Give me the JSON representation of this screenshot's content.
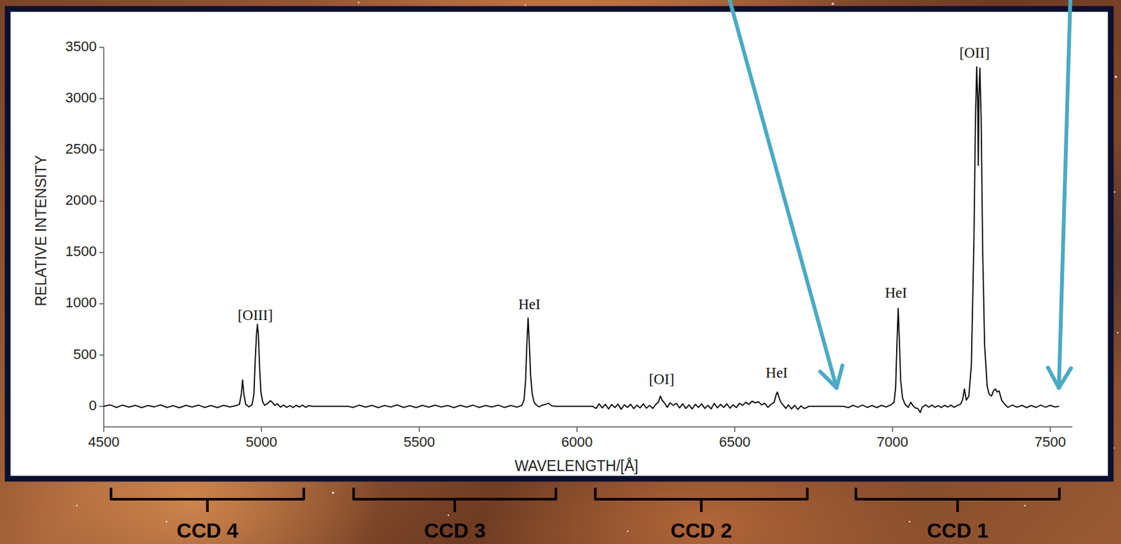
{
  "chart_data": {
    "type": "line",
    "x_label": "WAVELENGTH/[Å]",
    "y_label": "RELATIVE INTENSITY",
    "color": "#000000",
    "xlim": [
      4500,
      7570
    ],
    "ylim": [
      -200,
      3500
    ],
    "xticks": [
      4500,
      5000,
      5500,
      6000,
      6500,
      7000,
      7500
    ],
    "yticks": [
      0,
      500,
      1000,
      1500,
      2000,
      2500,
      3000,
      3500
    ],
    "grid": false,
    "x": [
      4500,
      4520,
      4540,
      4560,
      4580,
      4600,
      4620,
      4640,
      4660,
      4680,
      4700,
      4720,
      4740,
      4760,
      4780,
      4800,
      4820,
      4840,
      4860,
      4880,
      4900,
      4920,
      4930,
      4936,
      4940,
      4944,
      4950,
      4960,
      4970,
      4976,
      4980,
      4984,
      4987,
      4990,
      4994,
      4998,
      5004,
      5010,
      5020,
      5028,
      5034,
      5042,
      5050,
      5060,
      5070,
      5080,
      5090,
      5100,
      5110,
      5120,
      5130,
      5140,
      5150,
      5160,
      5275,
      5290,
      5310,
      5330,
      5350,
      5370,
      5390,
      5410,
      5430,
      5450,
      5470,
      5490,
      5510,
      5530,
      5550,
      5570,
      5590,
      5610,
      5630,
      5650,
      5670,
      5690,
      5710,
      5730,
      5750,
      5770,
      5790,
      5810,
      5825,
      5832,
      5837,
      5841,
      5845,
      5849,
      5853,
      5858,
      5864,
      5872,
      5880,
      5890,
      5900,
      5910,
      5920,
      5932,
      6050,
      6060,
      6070,
      6080,
      6090,
      6100,
      6110,
      6120,
      6130,
      6140,
      6150,
      6160,
      6170,
      6180,
      6190,
      6200,
      6210,
      6220,
      6230,
      6240,
      6250,
      6258,
      6264,
      6270,
      6278,
      6286,
      6295,
      6305,
      6315,
      6325,
      6335,
      6345,
      6355,
      6365,
      6375,
      6385,
      6395,
      6405,
      6415,
      6425,
      6435,
      6445,
      6455,
      6465,
      6475,
      6485,
      6495,
      6505,
      6515,
      6525,
      6535,
      6545,
      6555,
      6565,
      6575,
      6585,
      6595,
      6605,
      6615,
      6625,
      6631,
      6635,
      6640,
      6646,
      6654,
      6662,
      6670,
      6680,
      6690,
      6700,
      6710,
      6720,
      6730,
      6734,
      6845,
      6860,
      6875,
      6890,
      6905,
      6920,
      6935,
      6950,
      6965,
      6980,
      6995,
      7005,
      7010,
      7014,
      7018,
      7022,
      7026,
      7032,
      7040,
      7050,
      7058,
      7064,
      7072,
      7080,
      7088,
      7094,
      7105,
      7115,
      7125,
      7135,
      7145,
      7155,
      7165,
      7175,
      7185,
      7195,
      7205,
      7215,
      7222,
      7228,
      7234,
      7242,
      7250,
      7258,
      7263,
      7267,
      7270,
      7272,
      7274,
      7277,
      7281,
      7286,
      7292,
      7300,
      7306,
      7314,
      7320,
      7326,
      7332,
      7338,
      7346,
      7356,
      7366,
      7380,
      7395,
      7410,
      7425,
      7440,
      7455,
      7470,
      7485,
      7500,
      7515,
      7528
    ],
    "values": [
      0,
      15,
      -10,
      12,
      -8,
      10,
      -12,
      8,
      -5,
      14,
      -10,
      6,
      -14,
      10,
      -6,
      12,
      -10,
      8,
      -12,
      10,
      -6,
      8,
      20,
      120,
      258,
      120,
      20,
      -5,
      15,
      120,
      450,
      700,
      800,
      700,
      380,
      140,
      40,
      10,
      30,
      55,
      40,
      10,
      25,
      -8,
      12,
      -10,
      8,
      -12,
      10,
      -6,
      12,
      -10,
      8,
      0,
      0,
      -10,
      12,
      -8,
      10,
      -12,
      8,
      -6,
      14,
      -10,
      6,
      -12,
      10,
      -8,
      12,
      -6,
      8,
      -12,
      10,
      -8,
      12,
      -10,
      8,
      -6,
      12,
      -10,
      8,
      -8,
      10,
      60,
      250,
      600,
      862,
      600,
      300,
      120,
      40,
      10,
      -5,
      12,
      20,
      30,
      5,
      0,
      0,
      -20,
      25,
      -15,
      20,
      -25,
      18,
      -12,
      22,
      -28,
      15,
      -10,
      20,
      -22,
      12,
      -15,
      25,
      -18,
      10,
      -20,
      20,
      40,
      100,
      60,
      30,
      -10,
      35,
      10,
      30,
      -15,
      25,
      -20,
      15,
      -25,
      20,
      -10,
      25,
      -20,
      10,
      -25,
      30,
      -15,
      20,
      -10,
      25,
      -18,
      15,
      -12,
      30,
      10,
      40,
      20,
      50,
      35,
      45,
      15,
      30,
      -10,
      20,
      40,
      110,
      140,
      90,
      40,
      10,
      -20,
      15,
      -25,
      10,
      -30,
      5,
      -20,
      -10,
      0,
      0,
      -12,
      10,
      -8,
      12,
      -10,
      8,
      -12,
      10,
      -6,
      15,
      40,
      180,
      600,
      955,
      620,
      250,
      80,
      20,
      -10,
      40,
      10,
      -15,
      -20,
      -60,
      -10,
      15,
      -8,
      12,
      -10,
      8,
      -12,
      10,
      -6,
      12,
      -10,
      8,
      20,
      60,
      170,
      60,
      100,
      400,
      1600,
      2800,
      3310,
      3000,
      2350,
      3000,
      3300,
      2800,
      1500,
      600,
      200,
      120,
      100,
      150,
      170,
      140,
      150,
      60,
      20,
      -10,
      12,
      -8,
      10,
      -12,
      8,
      -10,
      12,
      -8,
      10,
      -6,
      0
    ],
    "annotations": [
      {
        "text": "[OIII]",
        "x": 4980,
        "y": 845
      },
      {
        "text": "HeI",
        "x": 5849,
        "y": 946
      },
      {
        "text": "[OI]",
        "x": 6268,
        "y": 216
      },
      {
        "text": "HeI",
        "x": 6633,
        "y": 278
      },
      {
        "text": "HeI",
        "x": 7011,
        "y": 1058
      },
      {
        "text": "[OII]",
        "x": 7260,
        "y": 3403
      }
    ],
    "ccds": [
      {
        "label": "CCD 4",
        "x": [
          4523,
          5134
        ]
      },
      {
        "label": "CCD 3",
        "x": [
          5292,
          5933
        ]
      },
      {
        "label": "CCD 2",
        "x": [
          6058,
          6730
        ]
      },
      {
        "label": "CCD 1",
        "x": [
          6884,
          7529
        ]
      }
    ]
  }
}
